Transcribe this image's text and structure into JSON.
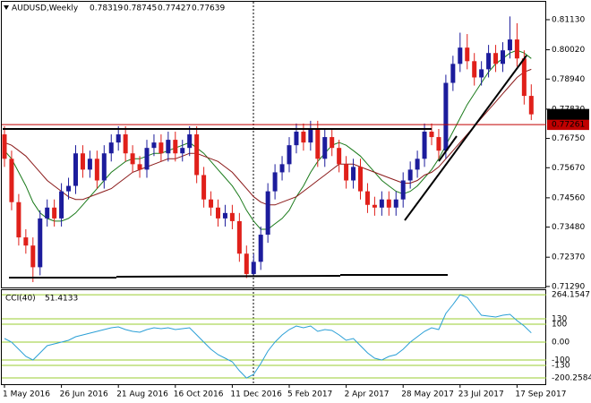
{
  "chart_data": [
    {
      "type": "candlestick",
      "title": "AUDUSD,Weekly",
      "categories": [
        "1 May 2016",
        null,
        null,
        null,
        null,
        null,
        null,
        null,
        "26 Jun 2016",
        null,
        null,
        null,
        null,
        null,
        null,
        null,
        "21 Aug 2016",
        null,
        null,
        null,
        null,
        null,
        null,
        null,
        "16 Oct 2016",
        null,
        null,
        null,
        null,
        null,
        null,
        null,
        "11 Dec 2016",
        null,
        null,
        null,
        null,
        null,
        null,
        null,
        "5 Feb 2017",
        null,
        null,
        null,
        null,
        null,
        null,
        null,
        "2 Apr 2017",
        null,
        null,
        null,
        null,
        null,
        null,
        null,
        "28 May 2017",
        null,
        null,
        null,
        null,
        null,
        null,
        null,
        "23 Jul 2017",
        null,
        null,
        null,
        null,
        null,
        null,
        null,
        "17 Sep 2017",
        null,
        null
      ],
      "open": [
        0.769,
        0.76,
        0.744,
        0.731,
        0.728,
        0.72,
        0.738,
        0.742,
        0.738,
        0.748,
        0.75,
        0.762,
        0.756,
        0.76,
        0.752,
        0.762,
        0.766,
        0.769,
        0.762,
        0.758,
        0.756,
        0.764,
        0.766,
        0.762,
        0.767,
        0.762,
        0.764,
        0.769,
        0.754,
        0.745,
        0.742,
        0.738,
        0.74,
        0.737,
        0.725,
        0.7175,
        0.722,
        0.732,
        0.748,
        0.755,
        0.758,
        0.765,
        0.77,
        0.766,
        0.771,
        0.76,
        0.768,
        0.764,
        0.758,
        0.752,
        0.757,
        0.748,
        0.743,
        0.742,
        0.745,
        0.742,
        0.745,
        0.752,
        0.756,
        0.76,
        0.77,
        0.768,
        0.763,
        0.788,
        0.795,
        0.801,
        0.796,
        0.79,
        0.793,
        0.799,
        0.795,
        0.8,
        0.804,
        0.797,
        0.78319
      ],
      "high": [
        0.772,
        0.763,
        0.747,
        0.734,
        0.731,
        0.741,
        0.745,
        0.745,
        0.751,
        0.753,
        0.765,
        0.765,
        0.763,
        0.763,
        0.765,
        0.769,
        0.772,
        0.772,
        0.765,
        0.761,
        0.767,
        0.769,
        0.769,
        0.77,
        0.77,
        0.767,
        0.772,
        0.772,
        0.757,
        0.748,
        0.745,
        0.743,
        0.743,
        0.74,
        0.728,
        0.725,
        0.735,
        0.751,
        0.758,
        0.761,
        0.768,
        0.773,
        0.773,
        0.774,
        0.774,
        0.771,
        0.771,
        0.767,
        0.761,
        0.76,
        0.76,
        0.751,
        0.746,
        0.748,
        0.748,
        0.748,
        0.755,
        0.759,
        0.763,
        0.773,
        0.773,
        0.771,
        0.791,
        0.798,
        0.8065,
        0.806,
        0.799,
        0.796,
        0.802,
        0.802,
        0.803,
        0.8125,
        0.81,
        0.8,
        0.78745
      ],
      "low": [
        0.757,
        0.741,
        0.728,
        0.725,
        0.7145,
        0.717,
        0.735,
        0.735,
        0.735,
        0.745,
        0.747,
        0.753,
        0.753,
        0.749,
        0.749,
        0.759,
        0.763,
        0.759,
        0.755,
        0.753,
        0.753,
        0.761,
        0.759,
        0.759,
        0.759,
        0.759,
        0.761,
        0.751,
        0.742,
        0.739,
        0.735,
        0.735,
        0.734,
        0.722,
        0.716,
        0.717,
        0.719,
        0.729,
        0.745,
        0.752,
        0.755,
        0.762,
        0.763,
        0.763,
        0.757,
        0.757,
        0.761,
        0.755,
        0.749,
        0.749,
        0.745,
        0.74,
        0.739,
        0.739,
        0.739,
        0.739,
        0.742,
        0.749,
        0.753,
        0.757,
        0.765,
        0.76,
        0.76,
        0.785,
        0.792,
        0.793,
        0.787,
        0.787,
        0.79,
        0.792,
        0.792,
        0.797,
        0.794,
        0.78,
        0.77427
      ],
      "close": [
        0.76,
        0.744,
        0.731,
        0.728,
        0.72,
        0.738,
        0.742,
        0.738,
        0.748,
        0.75,
        0.762,
        0.756,
        0.76,
        0.752,
        0.762,
        0.766,
        0.769,
        0.762,
        0.758,
        0.756,
        0.764,
        0.766,
        0.762,
        0.767,
        0.762,
        0.764,
        0.769,
        0.754,
        0.745,
        0.742,
        0.738,
        0.74,
        0.737,
        0.725,
        0.7175,
        0.722,
        0.732,
        0.748,
        0.755,
        0.758,
        0.765,
        0.77,
        0.766,
        0.771,
        0.76,
        0.768,
        0.764,
        0.758,
        0.752,
        0.757,
        0.748,
        0.743,
        0.742,
        0.745,
        0.742,
        0.745,
        0.752,
        0.756,
        0.76,
        0.77,
        0.768,
        0.763,
        0.788,
        0.795,
        0.801,
        0.796,
        0.79,
        0.793,
        0.799,
        0.795,
        0.8,
        0.804,
        0.797,
        0.78319,
        0.77639
      ],
      "up_color": "#1c1c9c",
      "down_color": "#e0201a",
      "series": [
        {
          "color": "#1a7a1a",
          "values": [
            0.763,
            0.76,
            0.755,
            0.75,
            0.744,
            0.74,
            0.738,
            0.737,
            0.737,
            0.738,
            0.74,
            0.743,
            0.746,
            0.749,
            0.752,
            0.755,
            0.757,
            0.759,
            0.76,
            0.76,
            0.761,
            0.762,
            0.762,
            0.763,
            0.764,
            0.765,
            0.766,
            0.764,
            0.762,
            0.759,
            0.756,
            0.753,
            0.75,
            0.746,
            0.741,
            0.737,
            0.734,
            0.734,
            0.736,
            0.738,
            0.741,
            0.746,
            0.75,
            0.755,
            0.759,
            0.762,
            0.765,
            0.766,
            0.765,
            0.763,
            0.761,
            0.758,
            0.755,
            0.752,
            0.75,
            0.748,
            0.747,
            0.748,
            0.75,
            0.753,
            0.756,
            0.76,
            0.765,
            0.77,
            0.775,
            0.78,
            0.784,
            0.788,
            0.792,
            0.795,
            0.797,
            0.799,
            0.8,
            0.799,
            0.797
          ]
        },
        {
          "color": "#8b1a1a",
          "values": [
            0.766,
            0.765,
            0.763,
            0.761,
            0.758,
            0.755,
            0.752,
            0.75,
            0.748,
            0.746,
            0.745,
            0.745,
            0.746,
            0.747,
            0.748,
            0.749,
            0.751,
            0.753,
            0.755,
            0.756,
            0.757,
            0.758,
            0.759,
            0.76,
            0.76,
            0.761,
            0.762,
            0.762,
            0.761,
            0.76,
            0.759,
            0.757,
            0.755,
            0.752,
            0.749,
            0.746,
            0.744,
            0.743,
            0.743,
            0.744,
            0.745,
            0.746,
            0.748,
            0.75,
            0.752,
            0.754,
            0.756,
            0.758,
            0.758,
            0.758,
            0.757,
            0.756,
            0.755,
            0.754,
            0.753,
            0.752,
            0.751,
            0.751,
            0.752,
            0.754,
            0.755,
            0.757,
            0.76,
            0.763,
            0.766,
            0.769,
            0.772,
            0.775,
            0.778,
            0.781,
            0.784,
            0.787,
            0.79,
            0.792,
            0.793
          ]
        }
      ],
      "reference_line": {
        "value": 0.77261,
        "color": "#c00000"
      },
      "ylim": [
        0.7122,
        0.8179
      ],
      "yticks": [
        {
          "value": 0.8113,
          "label": "0.81130"
        },
        {
          "value": 0.8002,
          "label": "0.80020"
        },
        {
          "value": 0.7894,
          "label": "0.78940"
        },
        {
          "value": 0.7783,
          "label": "0.77830"
        },
        {
          "value": 0.7675,
          "label": "0.76750"
        },
        {
          "value": 0.7567,
          "label": "0.75670"
        },
        {
          "value": 0.7456,
          "label": "0.74560"
        },
        {
          "value": 0.7348,
          "label": "0.73480"
        },
        {
          "value": 0.7237,
          "label": "0.72370"
        },
        {
          "value": 0.7129,
          "label": "0.71290"
        }
      ]
    },
    {
      "type": "line",
      "title": "CCI(40)",
      "color": "#2a9fd6",
      "level_color": "#9acd32",
      "values": [
        20,
        0,
        -40,
        -80,
        -100,
        -60,
        -20,
        -10,
        0,
        10,
        30,
        40,
        50,
        60,
        70,
        80,
        85,
        70,
        60,
        55,
        70,
        80,
        75,
        80,
        70,
        75,
        80,
        40,
        0,
        -40,
        -70,
        -90,
        -110,
        -160,
        -200.2584,
        -180,
        -120,
        -50,
        0,
        40,
        70,
        90,
        80,
        90,
        60,
        70,
        65,
        40,
        10,
        20,
        -20,
        -60,
        -90,
        -100,
        -80,
        -70,
        -40,
        0,
        30,
        60,
        80,
        70,
        160,
        210,
        264.1547,
        250,
        200,
        150,
        145,
        140,
        150,
        155,
        120,
        90,
        51.4133
      ],
      "ylim": [
        -240,
        290
      ],
      "yticks": [
        264.1547,
        130,
        100,
        {
          "value": 0,
          "label": "0.00"
        },
        -100,
        -130,
        -200.2584
      ]
    }
  ]
}
